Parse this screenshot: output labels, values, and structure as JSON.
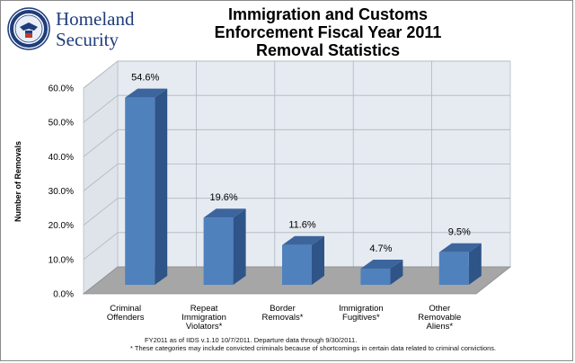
{
  "logo": {
    "line1": "Homeland",
    "line2": "Security"
  },
  "title_lines": [
    "Immigration and Customs",
    "Enforcement Fiscal Year 2011",
    "Removal Statistics"
  ],
  "footnotes": [
    "FY2011 as of IIDS v.1.10 10/7/2011. Departure data through 9/30/2011.",
    "* These categories may include convicted criminals because of shortcomings in certain data related to criminal convictions."
  ],
  "colors": {
    "bar_front": "#4f81bd",
    "bar_side": "#2f5487",
    "bar_top": "#3c659e",
    "floor": "#a6a6a6",
    "wall": "#e6ebf1",
    "title_logo": "#1f3d7a"
  },
  "chart_data": {
    "type": "bar",
    "title": "Immigration and Customs Enforcement Fiscal Year 2011 Removal Statistics",
    "ylabel": "Number of Removals",
    "xlabel": "",
    "categories": [
      [
        "Criminal",
        "Offenders"
      ],
      [
        "Repeat",
        "Immigration",
        "Violators*"
      ],
      [
        "Border",
        "Removals*"
      ],
      [
        "Immigration",
        "Fugitives*"
      ],
      [
        "Other",
        "Removable",
        "Aliens*"
      ]
    ],
    "values": [
      54.6,
      19.6,
      11.6,
      4.7,
      9.5
    ],
    "value_labels": [
      "54.6%",
      "19.6%",
      "11.6%",
      "4.7%",
      "9.5%"
    ],
    "ylim": [
      0,
      60
    ],
    "yticks": [
      "0.0%",
      "10.0%",
      "20.0%",
      "30.0%",
      "40.0%",
      "50.0%",
      "60.0%"
    ],
    "grid": true,
    "legend": "none"
  }
}
